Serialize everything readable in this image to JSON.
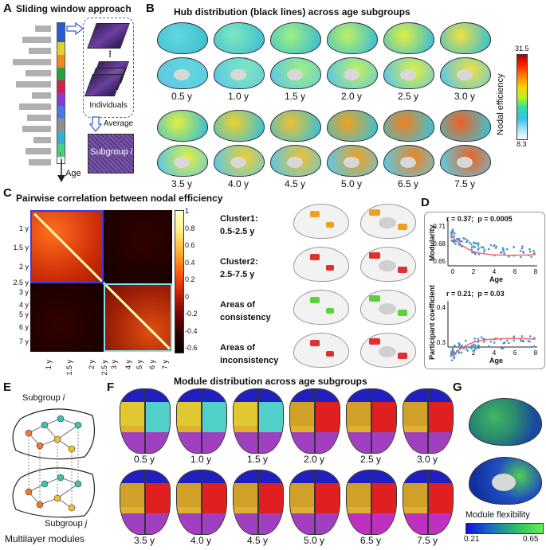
{
  "panels": {
    "A": {
      "letter": "A",
      "title": "Sliding window approach",
      "individuals": "Individuals",
      "average": "Average",
      "subgroup": "Subgroup",
      "subgroup_var": "i",
      "age": "Age",
      "dots": "⋮"
    },
    "B": {
      "letter": "B",
      "title": "Hub distribution (black lines) across age subgroups",
      "row1_ages": [
        "0.5 y",
        "1.0 y",
        "1.5 y",
        "2.0 y",
        "2.5 y",
        "3.0 y"
      ],
      "row2_ages": [
        "3.5 y",
        "4.0 y",
        "4.5 y",
        "5.0 y",
        "6.5 y",
        "7.5 y"
      ],
      "colorbar_max": "31.5",
      "colorbar_min": "8.3",
      "colorbar_label": "Nodal efficiency"
    },
    "C": {
      "letter": "C",
      "title": "Pairwise correlation between nodal efficiency",
      "y_ticks": [
        "1 y",
        "1.5 y",
        "2 y",
        "2.5 y",
        "3 y",
        "4 y",
        "5 y",
        "6 y",
        "7 y"
      ],
      "x_ticks": [
        "1 y",
        "1.5 y",
        "2 y",
        "2.5 y",
        "3 y",
        "4 y",
        "5 y",
        "6 y",
        "7 y"
      ],
      "colorbar_ticks": [
        "1",
        "0.8",
        "0.6",
        "0.4",
        "0.2",
        "0",
        "-0.2",
        "-0.4",
        "-0.6"
      ],
      "clusters": [
        {
          "line1": "Cluster1:",
          "line2": "0.5-2.5 y"
        },
        {
          "line1": "Cluster2:",
          "line2": "2.5-7.5 y"
        },
        {
          "line1": "Areas of",
          "line2": "consistency"
        },
        {
          "line1": "Areas of",
          "line2": "inconsistency"
        }
      ]
    },
    "D": {
      "letter": "D",
      "top": {
        "stats_r": "r = 0.37;",
        "stats_p": "p = 0.0005",
        "ylabel": "Modularity",
        "xlabel": "Age",
        "yticks": [
          "0.71",
          "0.68",
          "0.65"
        ],
        "xticks": [
          "0",
          "2",
          "4",
          "6",
          "8"
        ]
      },
      "bottom": {
        "stats_r": "r = 0.21;",
        "stats_p": "p = 0.03",
        "ylabel": "Participant coefficient",
        "xlabel": "Age",
        "yticks": [
          "0.4",
          "0.3"
        ],
        "xticks": [
          "0",
          "2",
          "4",
          "6",
          "8"
        ]
      }
    },
    "E": {
      "letter": "E",
      "subgroup_i": "Subgroup",
      "var_i": "i",
      "subgroup_j": "Subgroup",
      "var_j": "j",
      "caption": "Multilayer modules"
    },
    "F": {
      "letter": "F",
      "title": "Module distribution across age subgroups",
      "row1_ages": [
        "0.5 y",
        "1.0 y",
        "1.5 y",
        "2.0 y",
        "2.5 y",
        "3.0 y"
      ],
      "row2_ages": [
        "3.5 y",
        "4.0 y",
        "4.5 y",
        "5.0 y",
        "6.5 y",
        "7.5 y"
      ]
    },
    "G": {
      "letter": "G",
      "colorbar_label": "Module flexibility",
      "min": "0.21",
      "max": "0.65"
    }
  },
  "colors": {
    "accent_blue": "#3a5fcd",
    "cluster_cyan": "#7fd3e6",
    "cluster_red": "#e03030",
    "consistency_green": "#5fd03a",
    "inconsistency_orange": "#f0a020"
  }
}
